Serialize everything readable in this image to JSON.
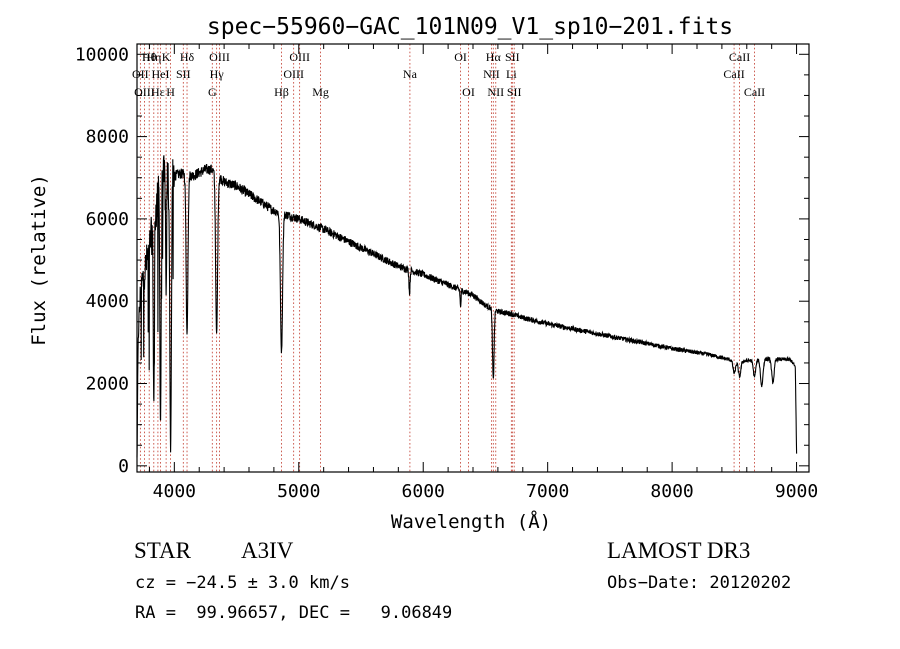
{
  "chart_data": {
    "type": "line",
    "title": "spec−55960−GAC_101N09_V1_sp10−201.fits",
    "xlabel": "Wavelength (Å)",
    "ylabel": "Flux (relative)",
    "xlim": [
      3700,
      9100
    ],
    "ylim": [
      -150,
      10250
    ],
    "xticks": [
      4000,
      5000,
      6000,
      7000,
      8000,
      9000
    ],
    "xtick_labels": [
      "4000",
      "5000",
      "6000",
      "7000",
      "8000",
      "9000"
    ],
    "yticks": [
      0,
      2000,
      4000,
      6000,
      8000,
      10000
    ],
    "ytick_labels": [
      "0",
      "2000",
      "4000",
      "6000",
      "8000",
      "10000"
    ],
    "continuum": {
      "x": [
        3700,
        3710,
        3730,
        3760,
        3800,
        3850,
        3900,
        3950,
        4000,
        4050,
        4150,
        4250,
        4300,
        4400,
        4500,
        4600,
        4700,
        4800,
        5000,
        5200,
        5400,
        5600,
        5800,
        6000,
        6200,
        6400,
        6500,
        6600,
        6700,
        6800,
        7000,
        7500,
        8000,
        8300,
        8500,
        8600,
        8700,
        8800,
        8950,
        8990,
        9000
      ],
      "y": [
        200,
        3200,
        4300,
        4700,
        5300,
        6200,
        6900,
        7000,
        7050,
        7100,
        7050,
        7200,
        7200,
        6900,
        6800,
        6600,
        6400,
        6200,
        6000,
        5750,
        5450,
        5150,
        4850,
        4650,
        4400,
        4150,
        3900,
        3750,
        3700,
        3600,
        3450,
        3150,
        2850,
        2700,
        2550,
        2550,
        2580,
        2600,
        2580,
        2400,
        300
      ]
    },
    "absorption_lines": [
      {
        "x": 3835,
        "depth": 0.75,
        "width": 6
      },
      {
        "x": 3889,
        "depth": 0.85,
        "width": 7
      },
      {
        "x": 3934,
        "depth": 0.45,
        "width": 5
      },
      {
        "x": 3970,
        "depth": 0.95,
        "width": 9
      },
      {
        "x": 4102,
        "depth": 0.55,
        "width": 10
      },
      {
        "x": 4340,
        "depth": 0.55,
        "width": 11
      },
      {
        "x": 4861,
        "depth": 0.55,
        "width": 12
      },
      {
        "x": 5890,
        "depth": 0.12,
        "width": 6
      },
      {
        "x": 6300,
        "depth": 0.1,
        "width": 5
      },
      {
        "x": 6563,
        "depth": 0.45,
        "width": 9
      },
      {
        "x": 8500,
        "depth": 0.12,
        "width": 14
      },
      {
        "x": 8542,
        "depth": 0.15,
        "width": 14
      },
      {
        "x": 8662,
        "depth": 0.15,
        "width": 14
      },
      {
        "x": 8720,
        "depth": 0.25,
        "width": 14
      },
      {
        "x": 8810,
        "depth": 0.22,
        "width": 14
      }
    ],
    "spectral_lines": [
      {
        "label": "Hθ",
        "x": 3798,
        "row": 0
      },
      {
        "label": "Hη",
        "x": 3835,
        "row": 0
      },
      {
        "label": "K",
        "x": 3934,
        "row": 0
      },
      {
        "label": "Hδ",
        "x": 4102,
        "row": 0
      },
      {
        "label": "OIII",
        "x": 4363,
        "row": 0
      },
      {
        "label": "OIII",
        "x": 5007,
        "row": 0
      },
      {
        "label": "OI",
        "x": 6300,
        "row": 0
      },
      {
        "label": "Hα",
        "x": 6563,
        "row": 0
      },
      {
        "label": "SII",
        "x": 6716,
        "row": 0
      },
      {
        "label": "CaII",
        "x": 8542,
        "row": 0
      },
      {
        "label": "OII",
        "x": 3727,
        "row": 1
      },
      {
        "label": "HeI",
        "x": 3889,
        "row": 1
      },
      {
        "label": "SII",
        "x": 4072,
        "row": 1
      },
      {
        "label": "Hγ",
        "x": 4340,
        "row": 1
      },
      {
        "label": "OIII",
        "x": 4959,
        "row": 1
      },
      {
        "label": "Na",
        "x": 5893,
        "row": 1
      },
      {
        "label": "NII",
        "x": 6548,
        "row": 1
      },
      {
        "label": "Li",
        "x": 6708,
        "row": 1
      },
      {
        "label": "CaII",
        "x": 8498,
        "row": 1
      },
      {
        "label": "OIII",
        "x": 3760,
        "row": 2
      },
      {
        "label": "Hε",
        "x": 3868,
        "row": 2
      },
      {
        "label": "H",
        "x": 3970,
        "row": 2
      },
      {
        "label": "G",
        "x": 4305,
        "row": 2
      },
      {
        "label": "Hβ",
        "x": 4861,
        "row": 2
      },
      {
        "label": "Mg",
        "x": 5175,
        "row": 2
      },
      {
        "label": "OI",
        "x": 6364,
        "row": 2
      },
      {
        "label": "NII",
        "x": 6583,
        "row": 2
      },
      {
        "label": "SII",
        "x": 6731,
        "row": 2
      },
      {
        "label": "CaII",
        "x": 8662,
        "row": 2
      }
    ]
  },
  "info": {
    "object_class": "STAR",
    "subclass": "A3IV",
    "velocity": "cz = −24.5 ± 3.0 km/s",
    "coordinates": "RA =  99.96657, DEC =   9.06849",
    "survey": "LAMOST DR3",
    "obs_date": "Obs−Date: 20120202"
  }
}
